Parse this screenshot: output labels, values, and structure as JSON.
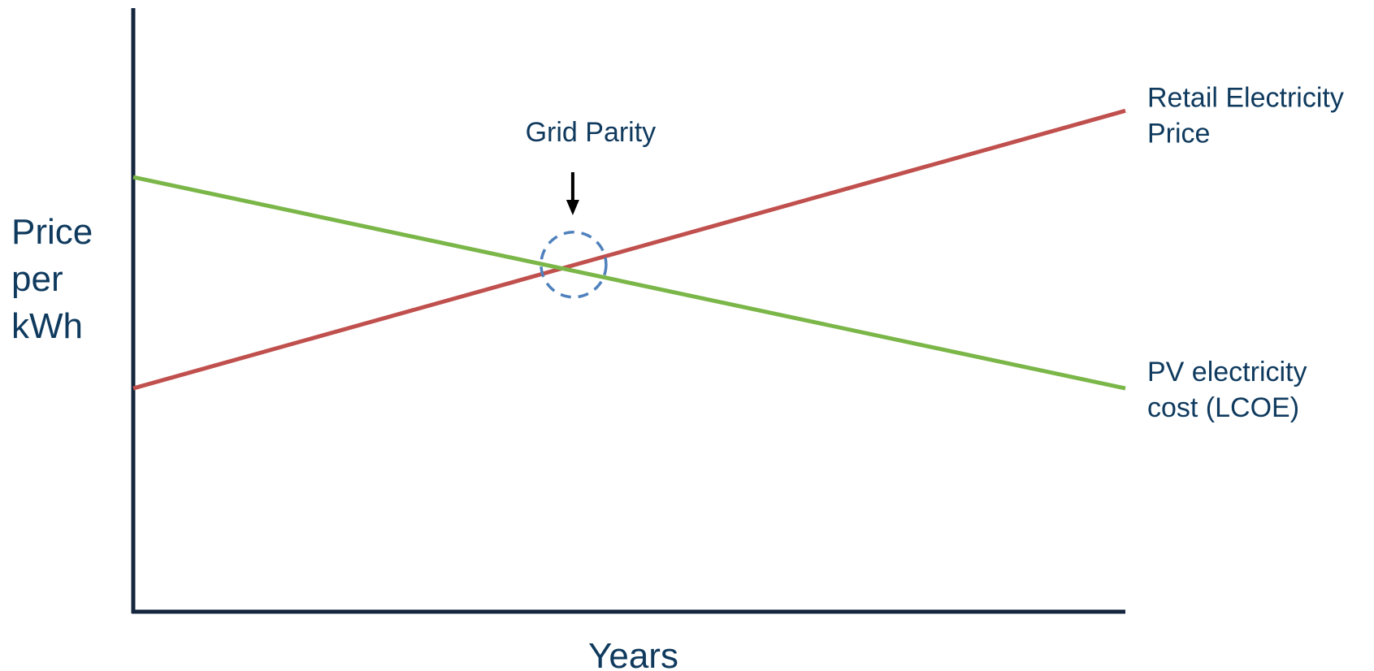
{
  "chart_data": {
    "type": "line",
    "xlabel": "Years",
    "ylabel": [
      "Price",
      "per",
      "kWh"
    ],
    "xlim": [
      0,
      1
    ],
    "ylim": [
      0,
      1
    ],
    "grid": false,
    "series": [
      {
        "name": [
          "Retail Electricity",
          "Price"
        ],
        "color": "#c0504d",
        "x": [
          0,
          1
        ],
        "y": [
          0.37,
          0.83
        ]
      },
      {
        "name": [
          "PV electricity",
          "cost (LCOE)"
        ],
        "color": "#7ab648",
        "x": [
          0,
          1
        ],
        "y": [
          0.72,
          0.37
        ]
      }
    ],
    "annotation": {
      "text": "Grid Parity",
      "x": 0.443,
      "y": 0.575,
      "marker": "dashed-circle",
      "marker_color": "#4f81bd",
      "arrow": "down-arrow-icon"
    }
  }
}
